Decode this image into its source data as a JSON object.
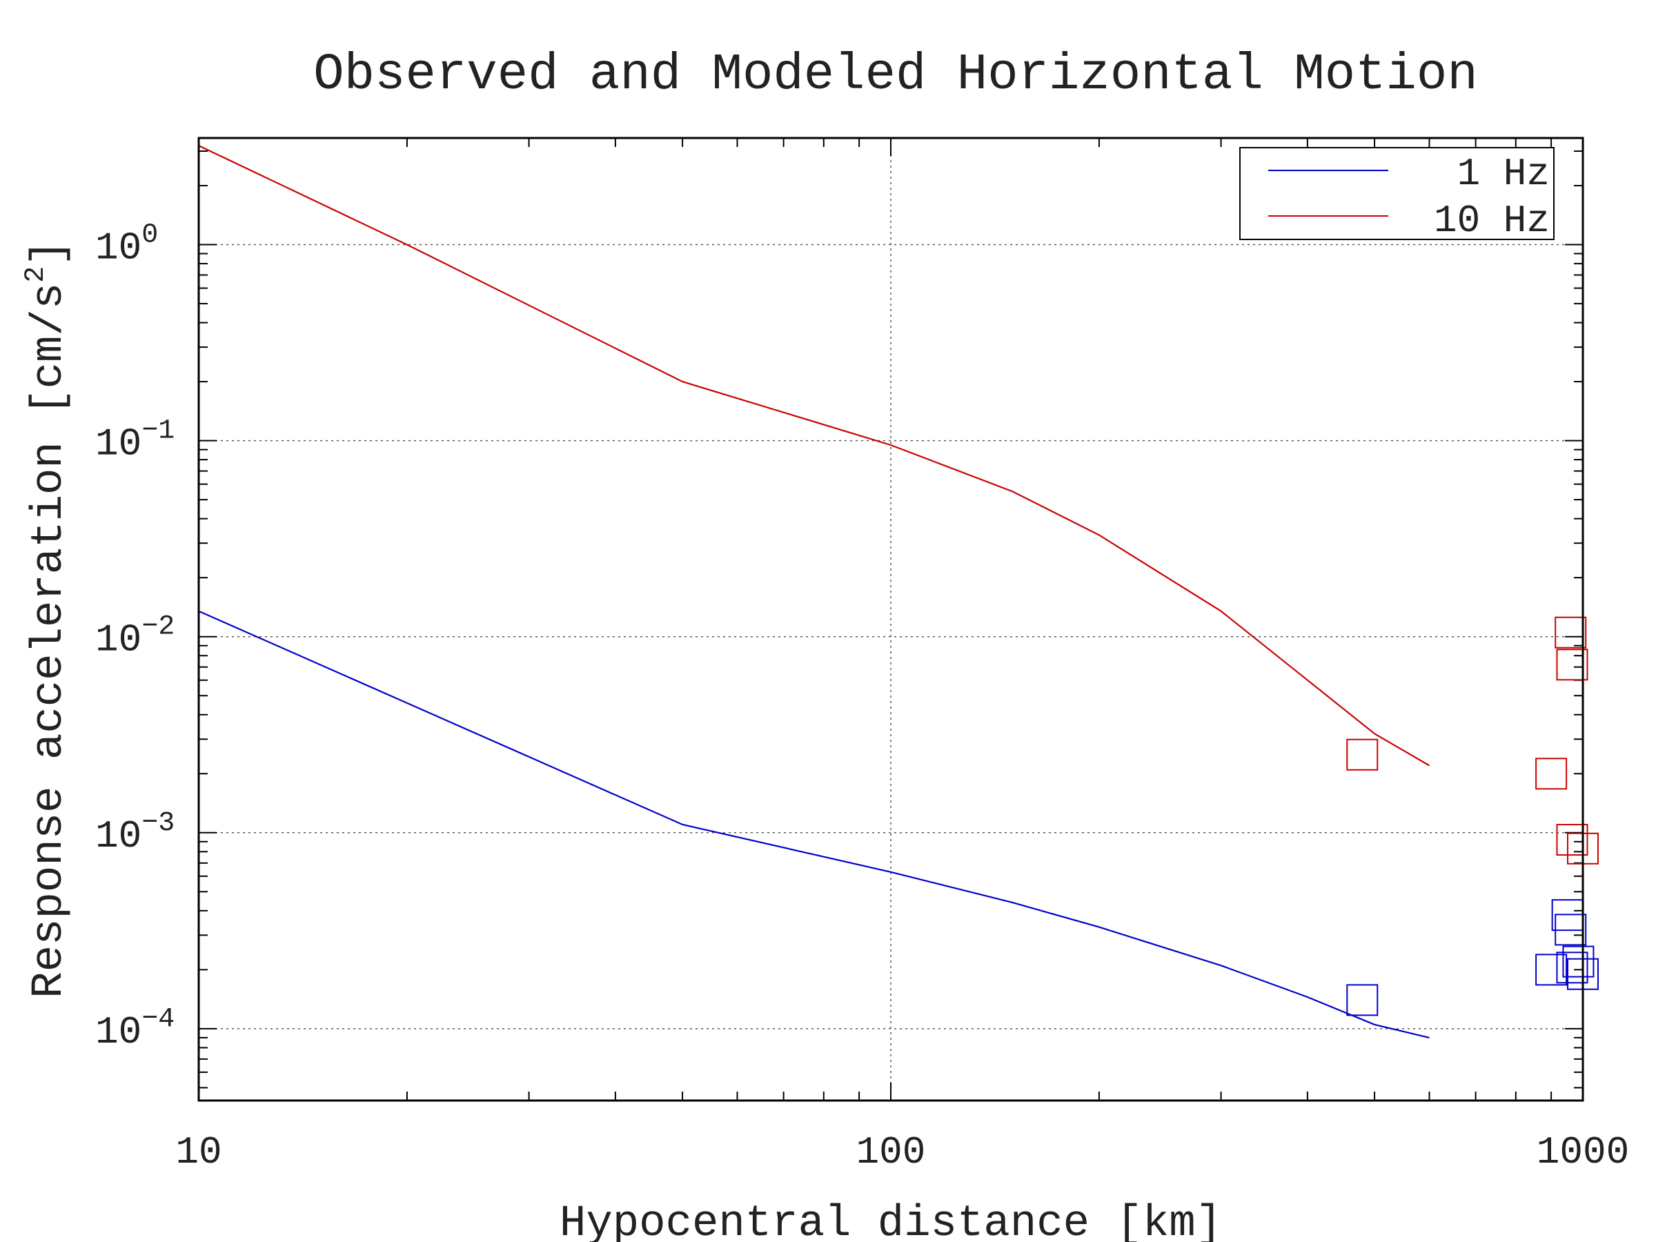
{
  "chart_data": {
    "type": "line",
    "title": "Observed and Modeled Horizontal Motion",
    "xlabel": "Hypocentral distance [km]",
    "ylabel": "Response acceleration [cm/s^2]",
    "ylabel_parts": {
      "main": "Response acceleration [cm/s",
      "sup": "2",
      "end": "]"
    },
    "xscale": "log",
    "yscale": "log",
    "xlim": [
      10,
      1000
    ],
    "ylim": [
      4.3e-05,
      3.5
    ],
    "x_ticks": [
      {
        "value": 10,
        "label": "10"
      },
      {
        "value": 100,
        "label": "100"
      },
      {
        "value": 1000,
        "label": "1000"
      }
    ],
    "y_ticks": [
      {
        "value": 1,
        "base": "10",
        "exp": "0"
      },
      {
        "value": 0.1,
        "base": "10",
        "exp": "−1"
      },
      {
        "value": 0.01,
        "base": "10",
        "exp": "−2"
      },
      {
        "value": 0.001,
        "base": "10",
        "exp": "−3"
      },
      {
        "value": 0.0001,
        "base": "10",
        "exp": "−4"
      }
    ],
    "grid": "dotted at major ticks",
    "legend_position": "top-right",
    "series": [
      {
        "name": "1 Hz",
        "color": "#0000cc",
        "x": [
          10,
          50,
          100,
          150,
          200,
          300,
          400,
          500,
          600
        ],
        "y": [
          0.0135,
          0.0011,
          0.00063,
          0.00044,
          0.00033,
          0.00021,
          0.000145,
          0.000105,
          9e-05
        ]
      },
      {
        "name": "10 Hz",
        "color": "#cc0000",
        "x": [
          10,
          20,
          50,
          100,
          150,
          200,
          300,
          400,
          500,
          600
        ],
        "y": [
          3.2,
          1.0,
          0.2,
          0.095,
          0.055,
          0.033,
          0.0135,
          0.006,
          0.0032,
          0.0022
        ]
      }
    ],
    "observed": [
      {
        "series": "1 Hz",
        "marker": "open-square",
        "color": "#0000cc",
        "x": [
          480,
          900,
          950,
          960,
          965,
          985,
          1000
        ],
        "y": [
          0.00014,
          0.0002,
          0.00038,
          0.00032,
          0.000205,
          0.00022,
          0.00019
        ]
      },
      {
        "series": "10 Hz",
        "marker": "open-square",
        "color": "#cc0000",
        "x": [
          480,
          900,
          960,
          965,
          965,
          1000
        ],
        "y": [
          0.0025,
          0.002,
          0.0105,
          0.0072,
          0.00092,
          0.00083
        ]
      }
    ]
  }
}
